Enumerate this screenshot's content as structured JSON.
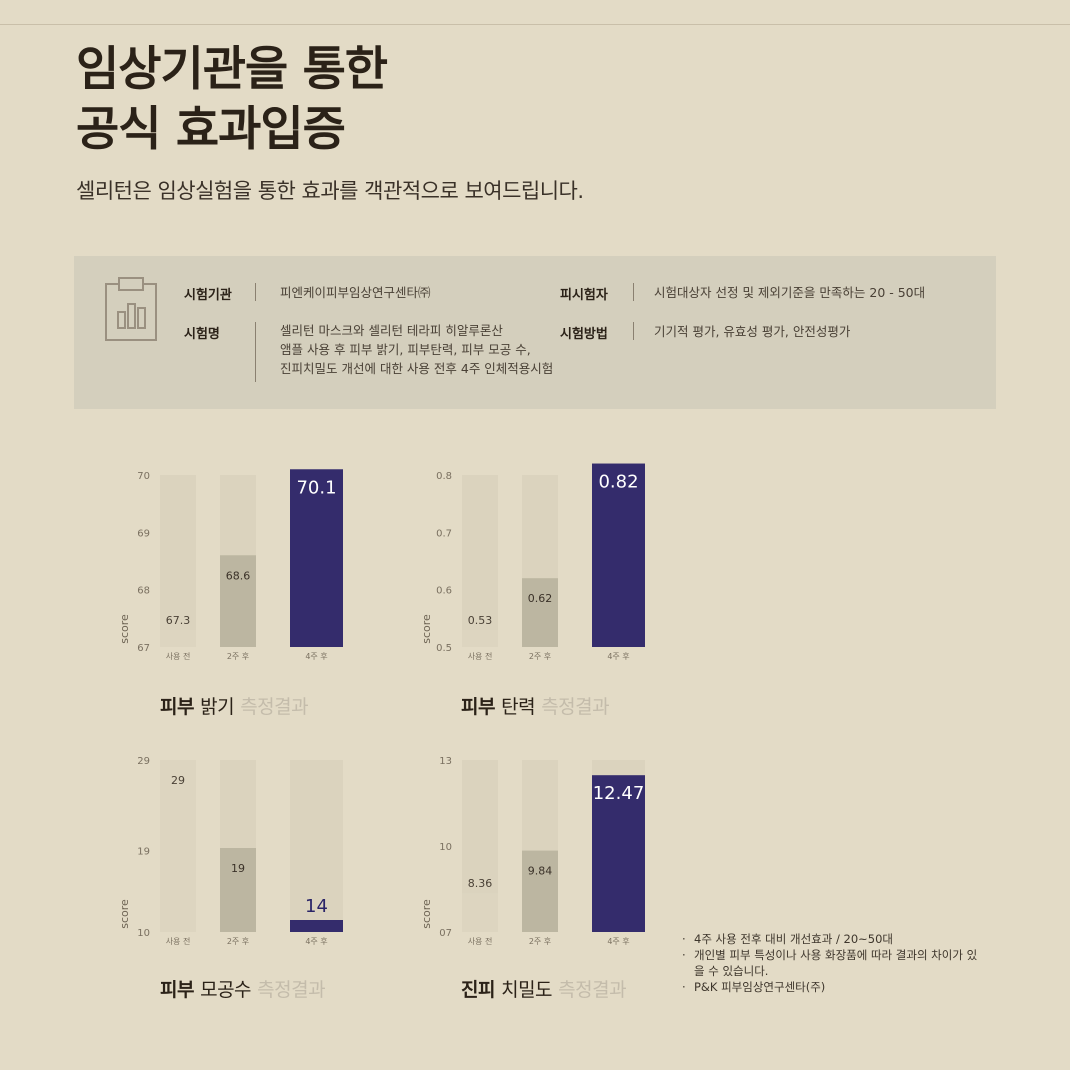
{
  "header": {
    "title_line1": "임상기관을 통한",
    "title_line2": "공식 효과입증",
    "subtitle": "셀리턴은 임상실험을 통한 효과를 객관적으로 보여드립니다."
  },
  "info": {
    "icon": "clipboard-chart-icon",
    "org_label": "시험기관",
    "org_value": "피엔케이피부임상연구센타㈜",
    "name_label": "시험명",
    "name_lines": [
      "셀리턴 마스크와 셀리턴 테라피 히알루론산",
      "앰플 사용 후 피부 밝기, 피부탄력, 피부 모공 수,",
      "진피치밀도 개선에 대한 사용 전후 4주 인체적용시험"
    ],
    "subject_label": "피시험자",
    "subject_value": "시험대상자 선정 및 제외기준을 만족하는 20 - 50대",
    "method_label": "시험방법",
    "method_value": "기기적 평가, 유효성 평가, 안전성평가"
  },
  "colors": {
    "background": "#e3dbc6",
    "panel": "#d4cfbd",
    "bar_track": "#dbd3be",
    "bar_before": "#ddd5c0",
    "bar_week2": "#bcb6a1",
    "bar_week4": "#342c6c"
  },
  "chart_data": [
    {
      "type": "bar",
      "caption_bold": "피부",
      "caption_rest": "밝기",
      "caption_light": "측정결과",
      "ylabel": "score",
      "ylim": [
        67,
        70
      ],
      "yticks": [
        "70",
        "69",
        "68",
        "67"
      ],
      "ytick_values": [
        70,
        69,
        68,
        67
      ],
      "categories": [
        "사용 전",
        "2주 후",
        "4주 후"
      ],
      "values": [
        67.3,
        68.6,
        70.1
      ],
      "value_labels": [
        "67.3",
        "68.6",
        "70.1"
      ]
    },
    {
      "type": "bar",
      "caption_bold": "피부",
      "caption_rest": "탄력",
      "caption_light": "측정결과",
      "ylabel": "score",
      "ylim": [
        0.5,
        0.8
      ],
      "yticks": [
        "0.8",
        "0.7",
        "0.6",
        "0.5"
      ],
      "ytick_values": [
        0.8,
        0.7,
        0.6,
        0.5
      ],
      "categories": [
        "사용 전",
        "2주 후",
        "4주 후"
      ],
      "values": [
        0.53,
        0.62,
        0.82
      ],
      "value_labels": [
        "0.53",
        "0.62",
        "0.82"
      ]
    },
    {
      "type": "bar",
      "caption_bold": "피부",
      "caption_rest": "모공수",
      "caption_light": "측정결과",
      "ylabel": "score",
      "ylim": [
        10,
        29
      ],
      "yticks": [
        "29",
        "19",
        "10"
      ],
      "ytick_values": [
        29,
        19,
        10
      ],
      "categories": [
        "사용 전",
        "2주 후",
        "4주 후"
      ],
      "values": [
        29,
        19,
        14
      ],
      "value_labels": [
        "29",
        "19",
        "14"
      ],
      "inverted": true
    },
    {
      "type": "bar",
      "caption_bold": "진피",
      "caption_rest": "치밀도",
      "caption_light": "측정결과",
      "ylabel": "score",
      "ylim": [
        7,
        13
      ],
      "yticks": [
        "13",
        "10",
        "07"
      ],
      "ytick_values": [
        13,
        10,
        7
      ],
      "categories": [
        "사용 전",
        "2주 후",
        "4주 후"
      ],
      "values": [
        8.36,
        9.84,
        12.47
      ],
      "value_labels": [
        "8.36",
        "9.84",
        "12.47"
      ]
    }
  ],
  "notes": [
    "4주 사용 전후 대비 개선효과 / 20~50대",
    "개인별 피부 특성이나 사용 화장품에 따라 결과의 차이가 있을 수 있습니다.",
    "P&K 피부임상연구센타(주)"
  ]
}
